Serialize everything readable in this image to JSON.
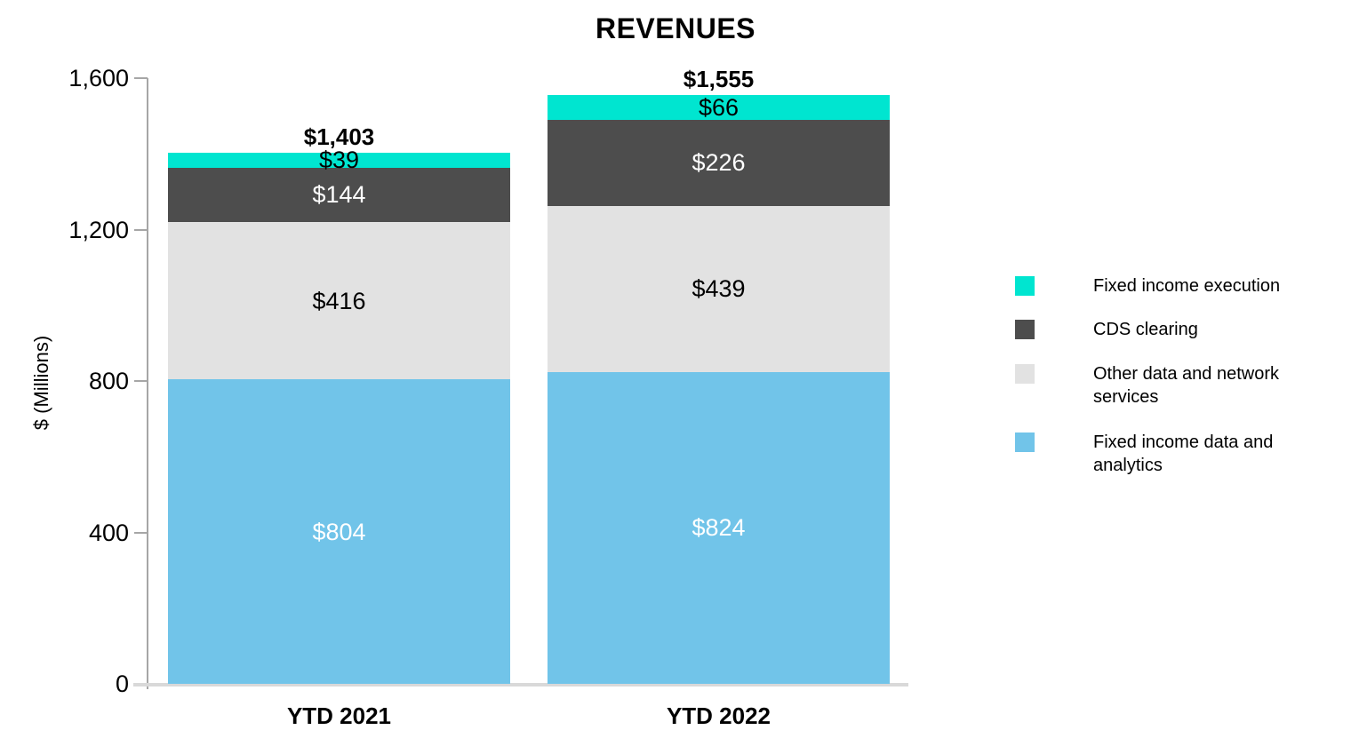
{
  "chart_data": {
    "type": "bar",
    "stacked": true,
    "title": "REVENUES",
    "xlabel": "",
    "ylabel": "$ (Millions)",
    "categories": [
      "YTD 2021",
      "YTD 2022"
    ],
    "totals": {
      "values": [
        1403,
        1555
      ],
      "labels": [
        "$1,403",
        "$1,555"
      ]
    },
    "series": [
      {
        "name": "Fixed income data and analytics",
        "color": "#71C4E9",
        "label_color": "#FFFFFF",
        "values": [
          804,
          824
        ],
        "labels": [
          "$804",
          "$824"
        ]
      },
      {
        "name": "Other data and network services",
        "color": "#E2E2E2",
        "label_color": "#000000",
        "values": [
          416,
          439
        ],
        "labels": [
          "$416",
          "$439"
        ]
      },
      {
        "name": "CDS clearing",
        "color": "#4D4D4D",
        "label_color": "#FFFFFF",
        "values": [
          144,
          226
        ],
        "labels": [
          "$144",
          "$226"
        ]
      },
      {
        "name": "Fixed income execution",
        "color": "#00E5D0",
        "label_color": "#000000",
        "values": [
          39,
          66
        ],
        "labels": [
          "$39",
          "$66"
        ]
      }
    ],
    "yticks": {
      "values": [
        0,
        400,
        800,
        1200,
        1600
      ],
      "labels": [
        "0",
        "400",
        "800",
        "1,200",
        "1,600"
      ]
    },
    "ylim": [
      0,
      1600
    ],
    "grid": false,
    "legend": {
      "position": "right",
      "entries": [
        {
          "label": "Fixed income execution",
          "color": "#00E5D0"
        },
        {
          "label": "CDS clearing",
          "color": "#4D4D4D"
        },
        {
          "label": "Other data and network services",
          "color": "#E2E2E2"
        },
        {
          "label": "Fixed income data and analytics",
          "color": "#71C4E9"
        }
      ]
    },
    "axis_color": "#A6A6A6",
    "baseline_color": "#D9D9D9"
  }
}
